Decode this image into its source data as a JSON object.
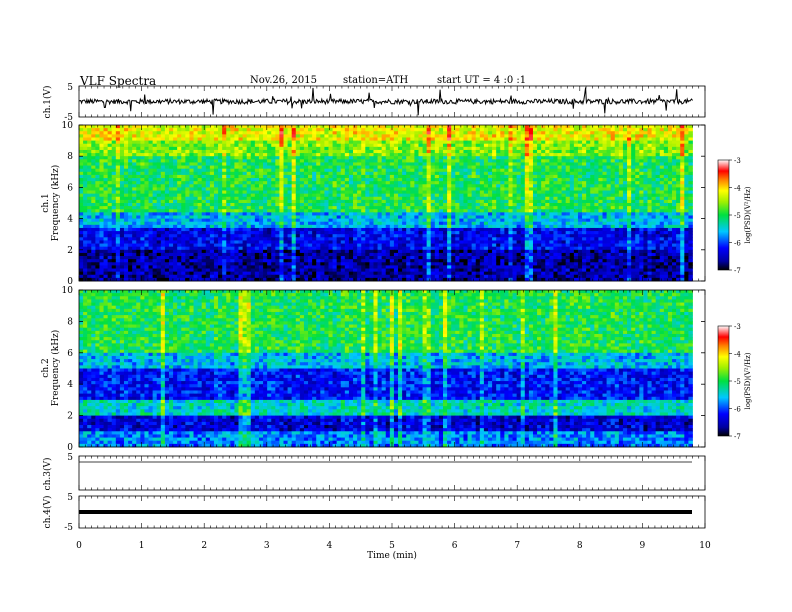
{
  "header": {
    "title": "VLF Spectra",
    "date": "Nov.26, 2015",
    "station": "station=ATH",
    "start": "start UT = 4 :0 :1"
  },
  "chart_data": [
    {
      "type": "line",
      "panel": "ch1-waveform",
      "ylabel": "ch.1(V)",
      "ylim": [
        -5,
        5
      ],
      "yticks": [
        "5",
        "-5"
      ],
      "baseline": 0
    },
    {
      "type": "heatmap",
      "panel": "ch1-spectrogram",
      "ylabel": [
        "ch.1",
        "Frequency (kHz)"
      ],
      "ylim": [
        0,
        10
      ],
      "yticks": [
        "0",
        "2",
        "4",
        "6",
        "8",
        "10"
      ],
      "colorbar": {
        "label": "log(PSD)(V²/Hz)",
        "range": [
          -7,
          -3
        ],
        "ticks": [
          "-3",
          "-4",
          "-5",
          "-6",
          "-7"
        ]
      },
      "band_log_psd": [
        {
          "f_from": 0,
          "f_to": 2,
          "log_psd": -6.6
        },
        {
          "f_from": 2,
          "f_to": 3.5,
          "log_psd": -6.3
        },
        {
          "f_from": 3.5,
          "f_to": 4.5,
          "log_psd": -5.6
        },
        {
          "f_from": 4.5,
          "f_to": 8,
          "log_psd": -5.0
        },
        {
          "f_from": 8,
          "f_to": 9,
          "log_psd": -4.6
        },
        {
          "f_from": 9,
          "f_to": 10,
          "log_psd": -4.2
        }
      ]
    },
    {
      "type": "heatmap",
      "panel": "ch2-spectrogram",
      "ylabel": [
        "ch.2",
        "Frequency (kHz)"
      ],
      "ylim": [
        0,
        10
      ],
      "yticks": [
        "0",
        "2",
        "4",
        "6",
        "8",
        "10"
      ],
      "colorbar": {
        "label": "log(PSD)(V²/Hz)",
        "range": [
          -7,
          -3
        ],
        "ticks": [
          "-3",
          "-4",
          "-5",
          "-6",
          "-7"
        ]
      },
      "band_log_psd": [
        {
          "f_from": 0,
          "f_to": 1,
          "log_psd": -5.8
        },
        {
          "f_from": 1,
          "f_to": 2,
          "log_psd": -6.4
        },
        {
          "f_from": 2,
          "f_to": 3,
          "log_psd": -5.4
        },
        {
          "f_from": 3,
          "f_to": 5,
          "log_psd": -6.2
        },
        {
          "f_from": 5,
          "f_to": 6,
          "log_psd": -5.6
        },
        {
          "f_from": 6,
          "f_to": 10,
          "log_psd": -5.0
        }
      ]
    },
    {
      "type": "line",
      "panel": "ch3-waveform",
      "ylabel": "ch.3(V)",
      "ylim": [
        -5,
        5
      ],
      "yticks": [
        "5"
      ],
      "baseline": 0
    },
    {
      "type": "line",
      "panel": "ch4-waveform",
      "ylabel": "ch.4(V)",
      "ylim": [
        -5,
        5
      ],
      "yticks": [
        "5",
        "-5"
      ],
      "baseline": 0
    }
  ],
  "x_axis": {
    "label": "Time (min)",
    "range": [
      0,
      10
    ],
    "data_end": 9.8,
    "ticks": [
      "0",
      "1",
      "2",
      "3",
      "4",
      "5",
      "6",
      "7",
      "8",
      "9",
      "10"
    ]
  }
}
